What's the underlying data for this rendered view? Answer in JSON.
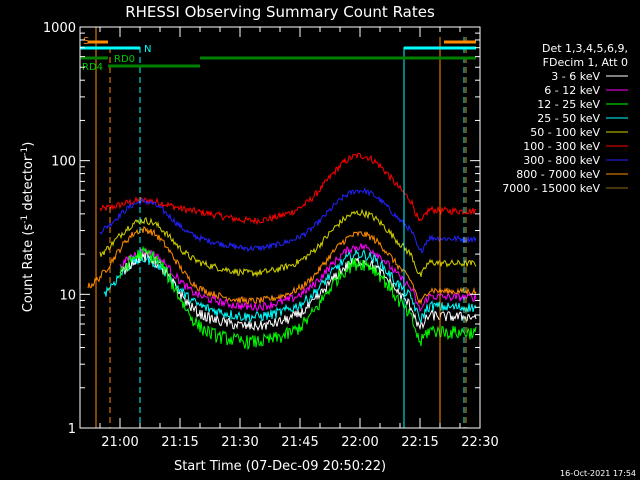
{
  "chart_data": {
    "type": "line",
    "title": "RHESSI Observing Summary Count Rates",
    "xlabel": "Start Time (07-Dec-09 20:50:22)",
    "ylabel_main": "Count Rate (s",
    "ylabel_sup1": "-1",
    "ylabel_mid": " detector",
    "ylabel_sup2": "-1",
    "ylabel_end": ")",
    "y_scale": "log",
    "ylim": [
      1,
      1000
    ],
    "xlim_minutes": [
      0,
      100
    ],
    "x_ticks": [
      {
        "label": "21:00",
        "min": 10
      },
      {
        "label": "21:15",
        "min": 25
      },
      {
        "label": "21:30",
        "min": 40
      },
      {
        "label": "21:45",
        "min": 55
      },
      {
        "label": "22:00",
        "min": 70
      },
      {
        "label": "22:15",
        "min": 85
      },
      {
        "label": "22:30",
        "min": 100
      }
    ],
    "y_ticks": [
      {
        "label": "1",
        "value": 1
      },
      {
        "label": "10",
        "value": 10
      },
      {
        "label": "100",
        "value": 100
      },
      {
        "label": "1000",
        "value": 1000
      }
    ],
    "legend_header": [
      "Det 1,3,4,5,6,9,",
      "FDecim 1, Att 0"
    ],
    "series": [
      {
        "name": "3 - 6 keV",
        "color": "#ffffff"
      },
      {
        "name": "6 - 12 keV",
        "color": "#ff00ff"
      },
      {
        "name": "12 - 25 keV",
        "color": "#00ff00"
      },
      {
        "name": "25 - 50 keV",
        "color": "#00ffff"
      },
      {
        "name": "50 - 100 keV",
        "color": "#d2d200"
      },
      {
        "name": "100 - 300 keV",
        "color": "#ff0000"
      },
      {
        "name": "300 - 800 keV",
        "color": "#2222ff"
      },
      {
        "name": "800 - 7000 keV",
        "color": "#ff8c00"
      },
      {
        "name": "7000 - 15000 keV",
        "color": "#8b6914"
      }
    ],
    "flags": {
      "s_label": "S",
      "n_label": "N",
      "rd0_label": "RD0",
      "rd4_label": "RD4"
    },
    "footer_date": "16-Oct-2021 17:54"
  }
}
